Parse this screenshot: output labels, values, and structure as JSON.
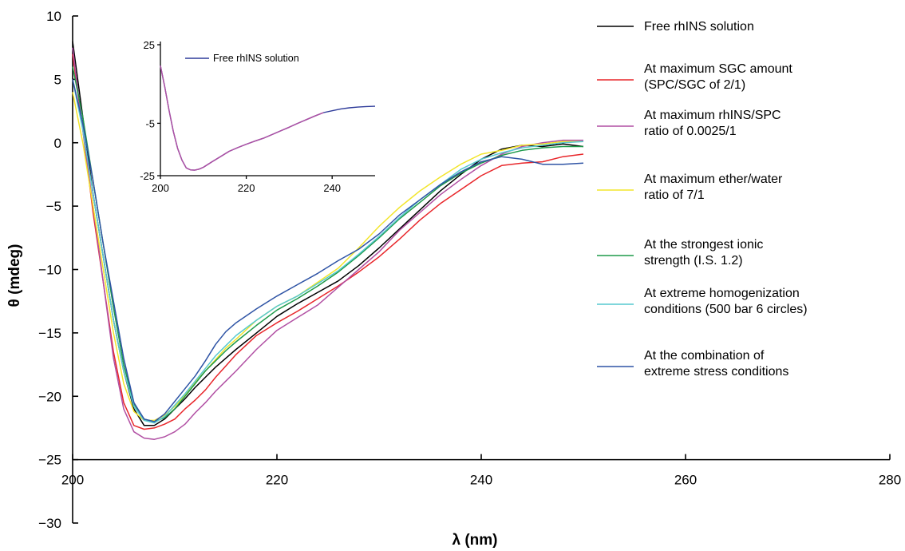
{
  "chart_data": [
    {
      "type": "line",
      "title": "",
      "xlabel": "λ (nm)",
      "ylabel": "θ (mdeg)",
      "xlim": [
        200,
        280
      ],
      "ylim": [
        -30,
        10
      ],
      "x_ticks": [
        200,
        220,
        240,
        260,
        280
      ],
      "y_ticks": [
        10,
        5,
        0,
        -5,
        -10,
        -15,
        -20,
        -25,
        -30
      ],
      "x_tick_labels": [
        "200",
        "220",
        "240",
        "260",
        "280"
      ],
      "y_tick_labels": [
        "10",
        "5",
        "0",
        "−5",
        "−10",
        "−15",
        "−20",
        "−25",
        "−30"
      ],
      "grid": false,
      "legend_position": "right",
      "series": [
        {
          "name": "Free rhINS solution",
          "legend_lines": [
            "Free rhINS solution"
          ],
          "color": "#000000",
          "x": [
            200,
            201,
            202,
            203,
            204,
            205,
            206,
            207,
            208,
            209,
            210,
            211,
            212,
            213,
            214,
            215,
            216,
            218,
            220,
            222,
            224,
            226,
            228,
            230,
            232,
            234,
            236,
            238,
            240,
            242,
            244,
            246,
            248,
            250
          ],
          "y": [
            8.0,
            2.0,
            -4.0,
            -9.0,
            -14.0,
            -18.0,
            -21.0,
            -22.3,
            -22.3,
            -21.8,
            -21.0,
            -20.2,
            -19.3,
            -18.5,
            -17.7,
            -17.0,
            -16.3,
            -15.0,
            -13.7,
            -12.7,
            -11.8,
            -10.9,
            -9.7,
            -8.3,
            -6.8,
            -5.3,
            -3.8,
            -2.5,
            -1.3,
            -0.5,
            -0.2,
            -0.3,
            -0.1,
            -0.3
          ]
        },
        {
          "name": "At maximum SGC amount (SPC/SGC of 2/1)",
          "legend_lines": [
            "At maximum SGC amount",
            "(SPC/SGC of 2/1)"
          ],
          "color": "#e8262a",
          "x": [
            200,
            201,
            202,
            203,
            204,
            205,
            206,
            207,
            208,
            209,
            210,
            211,
            212,
            213,
            214,
            215,
            216,
            218,
            220,
            222,
            224,
            226,
            228,
            230,
            232,
            234,
            236,
            238,
            240,
            242,
            244,
            246,
            248,
            250
          ],
          "y": [
            7.0,
            1.0,
            -5.5,
            -11.0,
            -16.5,
            -20.5,
            -22.3,
            -22.6,
            -22.5,
            -22.2,
            -21.8,
            -21.0,
            -20.3,
            -19.5,
            -18.5,
            -17.6,
            -16.7,
            -15.2,
            -14.2,
            -13.3,
            -12.3,
            -11.3,
            -10.2,
            -9.0,
            -7.6,
            -6.1,
            -4.8,
            -3.7,
            -2.6,
            -1.8,
            -1.6,
            -1.5,
            -1.1,
            -0.9
          ]
        },
        {
          "name": "At maximum rhINS/SPC ratio of 0.0025/1",
          "legend_lines": [
            "At maximum rhINS/SPC",
            "ratio of 0.0025/1"
          ],
          "color": "#b14fa3",
          "x": [
            200,
            201,
            202,
            203,
            204,
            205,
            206,
            207,
            208,
            209,
            210,
            211,
            212,
            213,
            214,
            215,
            216,
            218,
            220,
            222,
            224,
            226,
            228,
            230,
            232,
            234,
            236,
            238,
            240,
            242,
            244,
            246,
            248,
            250
          ],
          "y": [
            7.5,
            1.0,
            -5.0,
            -11.0,
            -17.0,
            -21.0,
            -22.8,
            -23.3,
            -23.4,
            -23.2,
            -22.8,
            -22.2,
            -21.3,
            -20.5,
            -19.6,
            -18.8,
            -18.0,
            -16.3,
            -14.8,
            -13.8,
            -12.8,
            -11.4,
            -10.0,
            -8.6,
            -6.9,
            -5.5,
            -4.1,
            -2.9,
            -1.8,
            -0.9,
            -0.3,
            0.0,
            0.2,
            0.2
          ]
        },
        {
          "name": "At maximum ether/water ratio of 7/1",
          "legend_lines": [
            "At maximum ether/water",
            "ratio of 7/1"
          ],
          "color": "#f2e52a",
          "x": [
            200,
            201,
            202,
            203,
            204,
            205,
            206,
            207,
            208,
            209,
            210,
            211,
            212,
            213,
            214,
            215,
            216,
            218,
            220,
            222,
            224,
            226,
            228,
            230,
            232,
            234,
            236,
            238,
            240,
            242,
            244,
            246,
            248,
            250
          ],
          "y": [
            4.0,
            0.0,
            -5.0,
            -10.0,
            -15.0,
            -19.0,
            -21.2,
            -21.9,
            -21.9,
            -21.5,
            -20.8,
            -19.9,
            -18.9,
            -18.0,
            -17.1,
            -16.2,
            -15.5,
            -14.0,
            -12.9,
            -12.1,
            -11.0,
            -9.9,
            -8.3,
            -6.6,
            -5.1,
            -3.8,
            -2.7,
            -1.7,
            -0.9,
            -0.6,
            -0.2,
            -0.1,
            0.1,
            0.1
          ]
        },
        {
          "name": "At the strongest ionic strength (I.S. 1.2)",
          "legend_lines": [
            "At the strongest ionic",
            "strength (I.S. 1.2)"
          ],
          "color": "#1e9a4a",
          "x": [
            200,
            201,
            202,
            203,
            204,
            205,
            206,
            207,
            208,
            209,
            210,
            211,
            212,
            213,
            214,
            215,
            216,
            218,
            220,
            222,
            224,
            226,
            228,
            230,
            232,
            234,
            236,
            238,
            240,
            242,
            244,
            246,
            248,
            250
          ],
          "y": [
            6.0,
            2.0,
            -3.0,
            -8.0,
            -13.0,
            -17.5,
            -20.6,
            -21.8,
            -22.0,
            -21.7,
            -21.0,
            -20.0,
            -19.0,
            -18.0,
            -17.2,
            -16.4,
            -15.7,
            -14.4,
            -13.2,
            -12.3,
            -11.3,
            -10.2,
            -8.9,
            -7.5,
            -6.0,
            -4.7,
            -3.4,
            -2.4,
            -1.6,
            -1.0,
            -0.6,
            -0.4,
            -0.3,
            -0.3
          ]
        },
        {
          "name": "At extreme homogenization conditions (500 bar 6 circles)",
          "legend_lines": [
            "At extreme homogenization",
            "conditions (500 bar 6 circles)"
          ],
          "color": "#57c9cf",
          "x": [
            200,
            201,
            202,
            203,
            204,
            205,
            206,
            207,
            208,
            209,
            210,
            211,
            212,
            213,
            214,
            215,
            216,
            218,
            220,
            222,
            224,
            226,
            228,
            230,
            232,
            234,
            236,
            238,
            240,
            242,
            244,
            246,
            248,
            250
          ],
          "y": [
            5.0,
            1.0,
            -4.0,
            -9.0,
            -14.0,
            -18.0,
            -20.8,
            -21.9,
            -22.1,
            -21.6,
            -20.7,
            -19.8,
            -18.8,
            -17.8,
            -16.8,
            -16.0,
            -15.2,
            -14.0,
            -12.9,
            -12.1,
            -11.1,
            -10.1,
            -8.8,
            -7.4,
            -5.9,
            -4.5,
            -3.3,
            -2.1,
            -1.3,
            -0.8,
            -0.4,
            -0.2,
            0.0,
            0.1
          ]
        },
        {
          "name": "At the combination of extreme stress conditions",
          "legend_lines": [
            "At the combination of",
            "extreme stress conditions"
          ],
          "color": "#2f54a5",
          "x": [
            200,
            201,
            202,
            203,
            204,
            205,
            206,
            207,
            208,
            209,
            210,
            211,
            212,
            213,
            214,
            215,
            216,
            218,
            220,
            222,
            224,
            226,
            228,
            230,
            232,
            234,
            236,
            238,
            240,
            242,
            244,
            246,
            248,
            250
          ],
          "y": [
            5.0,
            1.5,
            -3.0,
            -8.0,
            -12.5,
            -17.0,
            -20.5,
            -21.8,
            -22.0,
            -21.4,
            -20.4,
            -19.4,
            -18.4,
            -17.2,
            -15.9,
            -14.9,
            -14.2,
            -13.1,
            -12.1,
            -11.2,
            -10.3,
            -9.3,
            -8.4,
            -7.2,
            -5.7,
            -4.5,
            -3.3,
            -2.3,
            -1.5,
            -1.1,
            -1.3,
            -1.7,
            -1.7,
            -1.6
          ]
        }
      ]
    },
    {
      "type": "line",
      "title": "",
      "xlabel": "",
      "ylabel": "",
      "xlim": [
        200,
        250
      ],
      "ylim": [
        -25,
        25
      ],
      "x_ticks": [
        200,
        220,
        240
      ],
      "y_ticks": [
        25,
        -5,
        -25
      ],
      "x_tick_labels": [
        "200",
        "220",
        "240"
      ],
      "y_tick_labels": [
        "25",
        "-5",
        "-25"
      ],
      "grid": false,
      "legend_position": "top",
      "series": [
        {
          "name": "Free rhINS solution",
          "color": "#2f3c9a",
          "x": [
            200,
            201,
            202,
            203,
            204,
            205,
            206,
            207,
            208,
            209,
            210,
            212,
            214,
            216,
            218,
            220,
            222,
            224,
            226,
            228,
            230,
            232,
            234,
            236,
            238,
            240,
            242,
            244,
            246,
            248,
            250
          ],
          "y": [
            17.0,
            9.0,
            0.0,
            -8.0,
            -14.5,
            -19.0,
            -22.0,
            -22.8,
            -22.9,
            -22.5,
            -21.8,
            -19.7,
            -17.7,
            -15.7,
            -14.3,
            -13.0,
            -11.8,
            -10.7,
            -9.3,
            -7.9,
            -6.5,
            -5.0,
            -3.6,
            -2.2,
            -0.9,
            -0.2,
            0.5,
            0.9,
            1.2,
            1.4,
            1.5
          ]
        },
        {
          "name": "",
          "color": "#b14fa3",
          "x": [
            200,
            201,
            202,
            203,
            204,
            205,
            206,
            207,
            208,
            209,
            210,
            212,
            214,
            216,
            218,
            220,
            222,
            224,
            226,
            228,
            230,
            232,
            234,
            236,
            238
          ],
          "y": [
            17.0,
            9.0,
            0.0,
            -8.0,
            -14.5,
            -19.0,
            -22.0,
            -22.8,
            -22.9,
            -22.5,
            -21.8,
            -19.7,
            -17.7,
            -15.7,
            -14.3,
            -13.0,
            -11.8,
            -10.7,
            -9.3,
            -7.9,
            -6.5,
            -5.0,
            -3.6,
            -2.2,
            -0.9
          ]
        }
      ]
    }
  ]
}
